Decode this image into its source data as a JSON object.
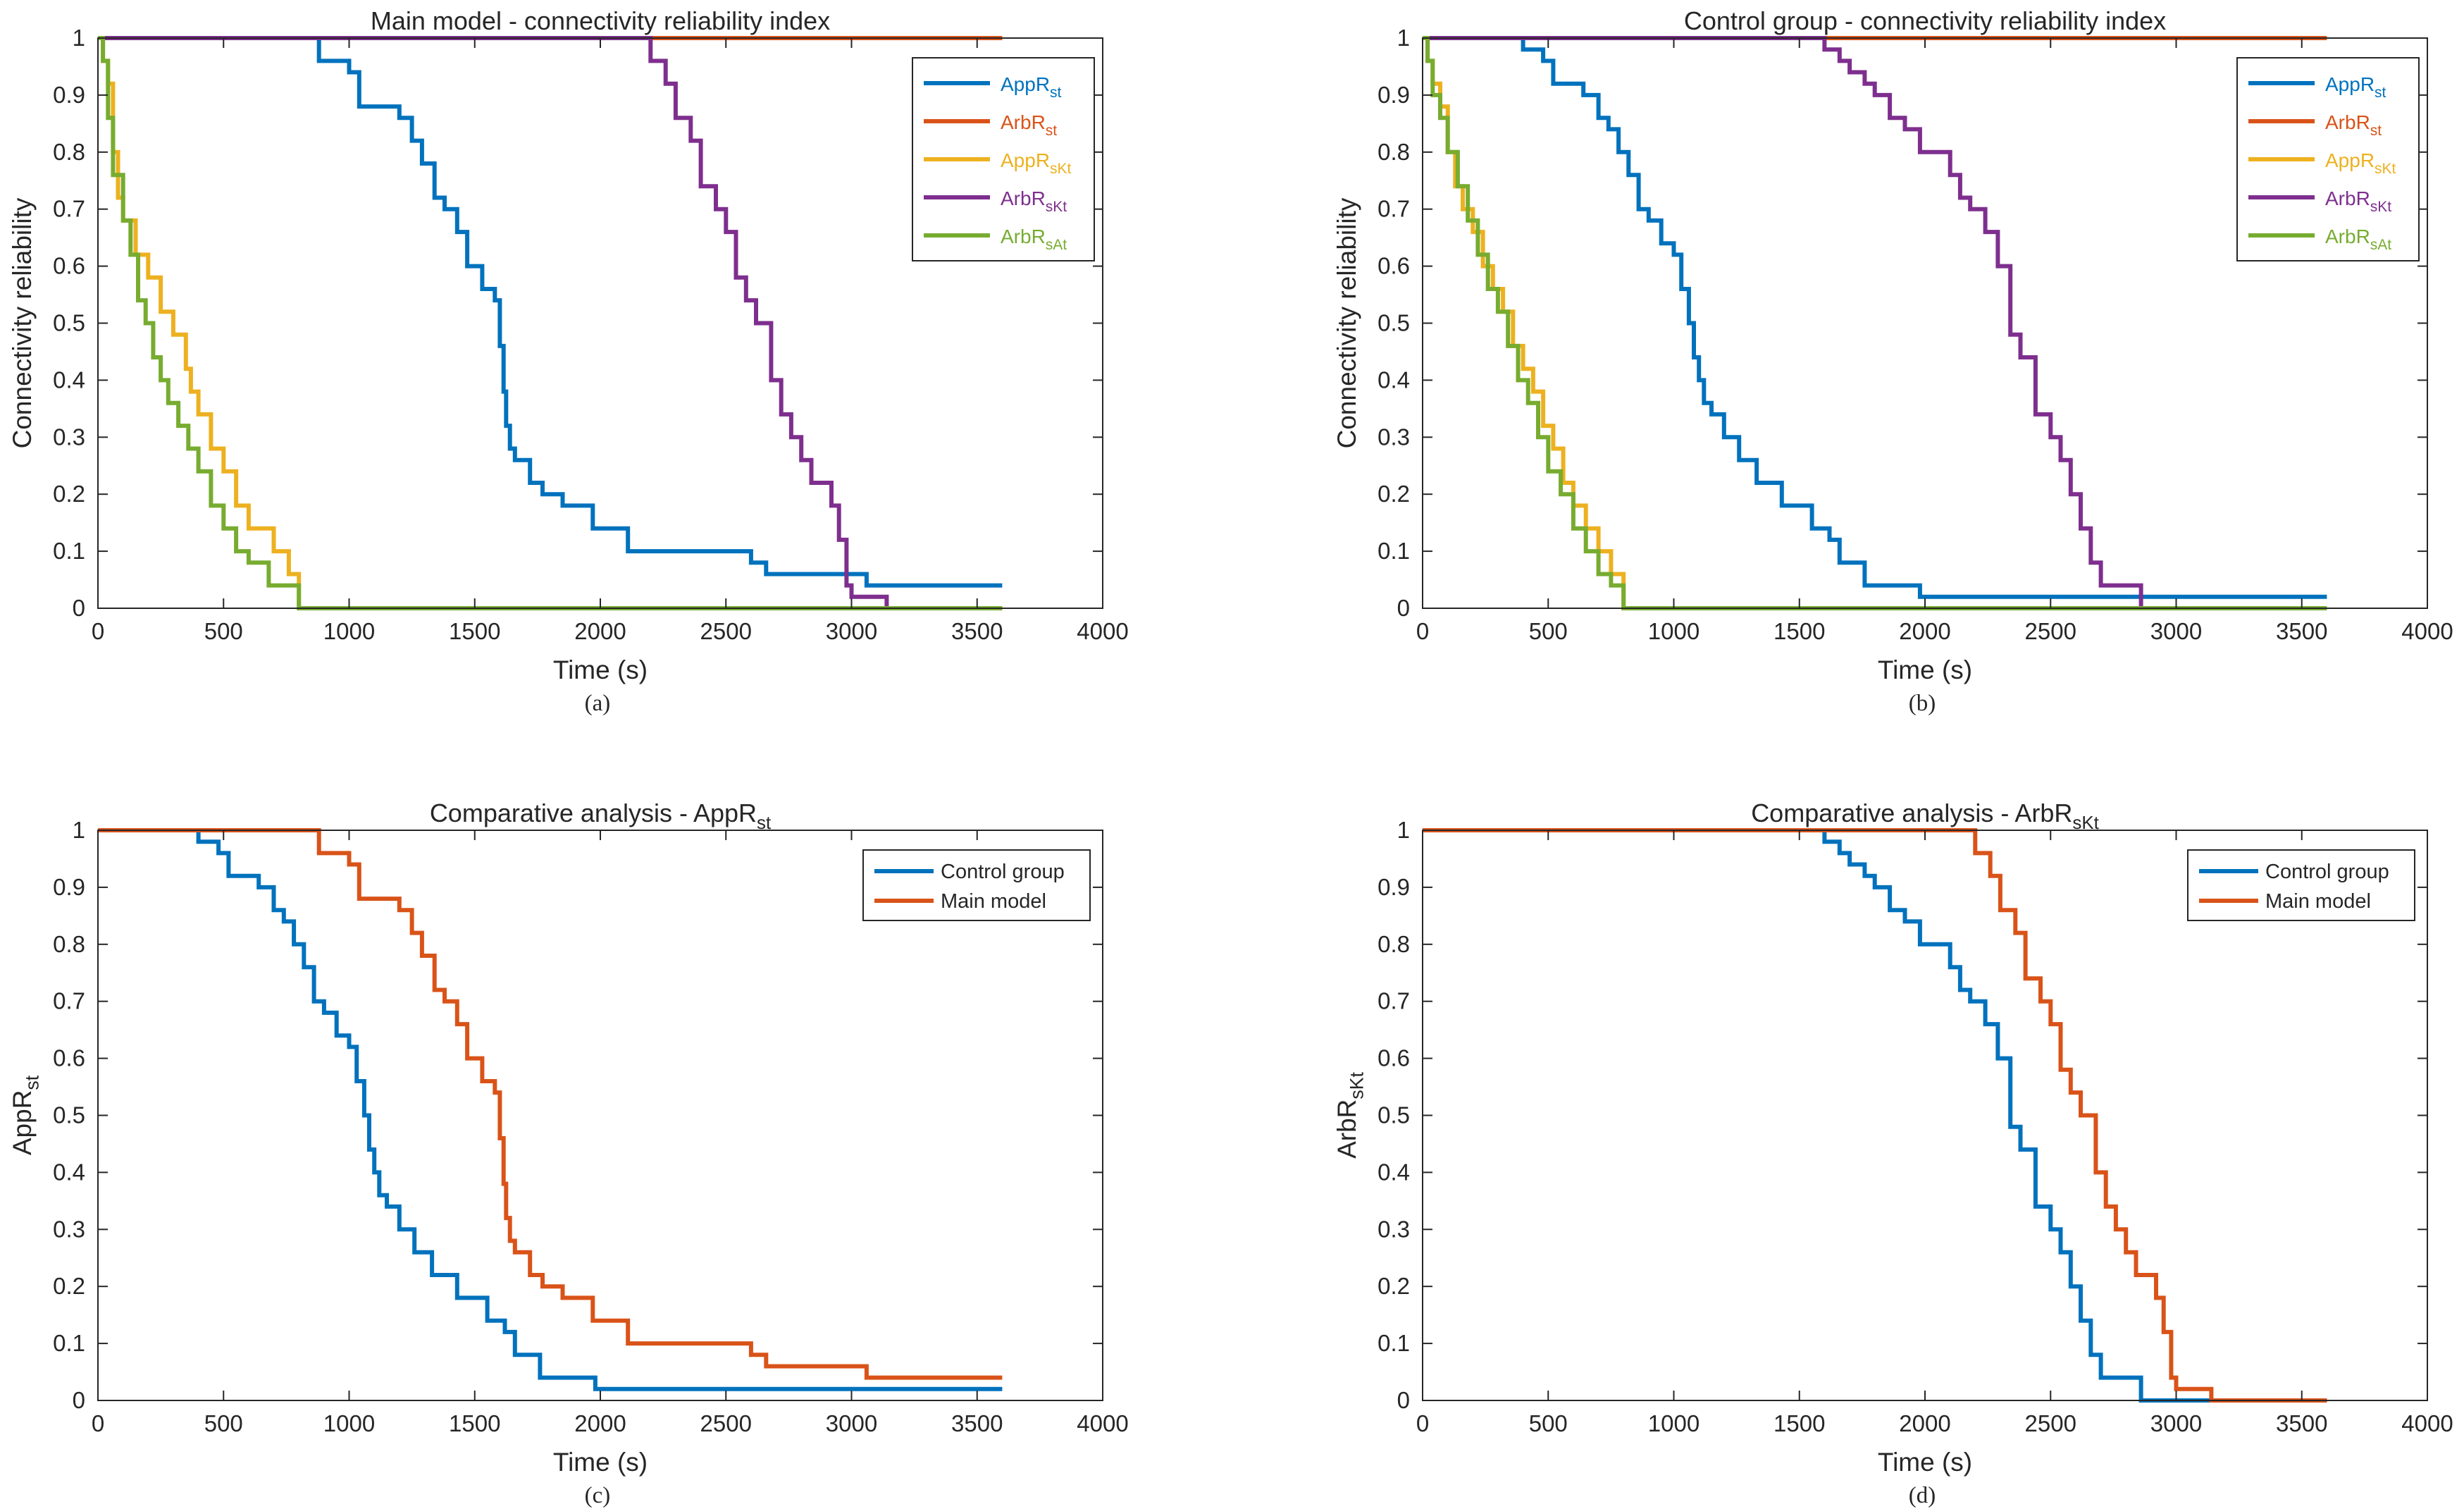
{
  "colors": {
    "blue": "#0072BD",
    "orange": "#D95319",
    "yellow": "#EDB120",
    "purple": "#7E2F8E",
    "green": "#77AC30",
    "axis": "#262626"
  },
  "chart_data": [
    {
      "id": "a",
      "type": "line",
      "title": "Main model - connectivity reliability index",
      "xlabel": "Time (s)",
      "ylabel": "Connectivity reliability",
      "caption": "(a)",
      "xlim": [
        0,
        4000
      ],
      "ylim": [
        0,
        1
      ],
      "xticks": [
        0,
        500,
        1000,
        1500,
        2000,
        2500,
        3000,
        3500,
        4000
      ],
      "yticks": [
        0,
        0.1,
        0.2,
        0.3,
        0.4,
        0.5,
        0.6,
        0.7,
        0.8,
        0.9,
        1
      ],
      "series": [
        {
          "name": "AppR_st",
          "base": "AppR",
          "sub": "st",
          "color": "#0072BD",
          "x": [
            0,
            820,
            880,
            1000,
            1040,
            1200,
            1250,
            1290,
            1340,
            1380,
            1430,
            1470,
            1530,
            1580,
            1600,
            1615,
            1625,
            1640,
            1660,
            1720,
            1770,
            1850,
            1970,
            2110,
            2600,
            2660,
            3060,
            3600
          ],
          "y": [
            1,
            1,
            0.96,
            0.94,
            0.88,
            0.86,
            0.82,
            0.78,
            0.72,
            0.7,
            0.66,
            0.6,
            0.56,
            0.54,
            0.46,
            0.38,
            0.32,
            0.28,
            0.26,
            0.22,
            0.2,
            0.18,
            0.14,
            0.1,
            0.08,
            0.06,
            0.04,
            0.04
          ]
        },
        {
          "name": "ArbR_st",
          "base": "ArbR",
          "sub": "st",
          "color": "#D95319",
          "x": [
            0,
            3600
          ],
          "y": [
            1,
            1
          ]
        },
        {
          "name": "AppR_sKt",
          "base": "AppR",
          "sub": "sKt",
          "color": "#EDB120",
          "x": [
            0,
            20,
            40,
            60,
            80,
            100,
            150,
            200,
            250,
            300,
            350,
            370,
            400,
            450,
            500,
            550,
            600,
            700,
            760,
            800,
            3600
          ],
          "y": [
            1,
            0.96,
            0.92,
            0.8,
            0.72,
            0.68,
            0.62,
            0.58,
            0.52,
            0.48,
            0.42,
            0.38,
            0.34,
            0.28,
            0.24,
            0.18,
            0.14,
            0.1,
            0.06,
            0,
            0
          ]
        },
        {
          "name": "ArbR_sKt",
          "base": "ArbR",
          "sub": "sKt",
          "color": "#7E2F8E",
          "x": [
            0,
            2160,
            2200,
            2260,
            2300,
            2360,
            2400,
            2460,
            2500,
            2540,
            2580,
            2620,
            2680,
            2720,
            2760,
            2800,
            2840,
            2920,
            2950,
            2980,
            3000,
            3140
          ],
          "y": [
            1,
            1,
            0.96,
            0.92,
            0.86,
            0.82,
            0.74,
            0.7,
            0.66,
            0.58,
            0.54,
            0.5,
            0.4,
            0.34,
            0.3,
            0.26,
            0.22,
            0.18,
            0.12,
            0.04,
            0.02,
            0
          ]
        },
        {
          "name": "ArbR_sAt",
          "base": "ArbR",
          "sub": "sAt",
          "color": "#77AC30",
          "x": [
            0,
            20,
            40,
            60,
            100,
            130,
            160,
            190,
            220,
            250,
            280,
            320,
            360,
            400,
            450,
            500,
            550,
            600,
            680,
            800,
            3600
          ],
          "y": [
            1,
            0.96,
            0.86,
            0.76,
            0.68,
            0.62,
            0.54,
            0.5,
            0.44,
            0.4,
            0.36,
            0.32,
            0.28,
            0.24,
            0.18,
            0.14,
            0.1,
            0.08,
            0.04,
            0,
            0
          ]
        }
      ]
    },
    {
      "id": "b",
      "type": "line",
      "title": "Control group - connectivity reliability index",
      "xlabel": "Time (s)",
      "ylabel": "Connectivity reliability",
      "caption": "(b)",
      "xlim": [
        0,
        4000
      ],
      "ylim": [
        0,
        1
      ],
      "xticks": [
        0,
        500,
        1000,
        1500,
        2000,
        2500,
        3000,
        3500,
        4000
      ],
      "yticks": [
        0,
        0.1,
        0.2,
        0.3,
        0.4,
        0.5,
        0.6,
        0.7,
        0.8,
        0.9,
        1
      ],
      "series": [
        {
          "name": "AppR_st",
          "base": "AppR",
          "sub": "st",
          "color": "#0072BD",
          "x": [
            0,
            350,
            400,
            480,
            520,
            640,
            700,
            740,
            780,
            820,
            860,
            900,
            950,
            1000,
            1030,
            1060,
            1080,
            1100,
            1120,
            1150,
            1200,
            1260,
            1330,
            1430,
            1550,
            1620,
            1660,
            1760,
            1980,
            3600
          ],
          "y": [
            1,
            1,
            0.98,
            0.96,
            0.92,
            0.9,
            0.86,
            0.84,
            0.8,
            0.76,
            0.7,
            0.68,
            0.64,
            0.62,
            0.56,
            0.5,
            0.44,
            0.4,
            0.36,
            0.34,
            0.3,
            0.26,
            0.22,
            0.18,
            0.14,
            0.12,
            0.08,
            0.04,
            0.02,
            0.02
          ]
        },
        {
          "name": "ArbR_st",
          "base": "ArbR",
          "sub": "st",
          "color": "#D95319",
          "x": [
            0,
            3600
          ],
          "y": [
            1,
            1
          ]
        },
        {
          "name": "AppR_sKt",
          "base": "AppR",
          "sub": "sKt",
          "color": "#EDB120",
          "x": [
            0,
            20,
            40,
            70,
            100,
            130,
            160,
            200,
            240,
            280,
            320,
            360,
            400,
            440,
            480,
            520,
            560,
            600,
            650,
            700,
            750,
            800,
            3600
          ],
          "y": [
            1,
            0.96,
            0.92,
            0.88,
            0.8,
            0.74,
            0.7,
            0.66,
            0.6,
            0.56,
            0.52,
            0.46,
            0.42,
            0.38,
            0.32,
            0.28,
            0.22,
            0.18,
            0.14,
            0.1,
            0.06,
            0,
            0
          ]
        },
        {
          "name": "ArbR_sKt",
          "base": "ArbR",
          "sub": "sKt",
          "color": "#7E2F8E",
          "x": [
            0,
            1540,
            1600,
            1660,
            1700,
            1760,
            1800,
            1860,
            1920,
            1980,
            2100,
            2140,
            2180,
            2240,
            2290,
            2340,
            2380,
            2440,
            2500,
            2540,
            2580,
            2620,
            2660,
            2700,
            2860
          ],
          "y": [
            1,
            1,
            0.98,
            0.96,
            0.94,
            0.92,
            0.9,
            0.86,
            0.84,
            0.8,
            0.76,
            0.72,
            0.7,
            0.66,
            0.6,
            0.48,
            0.44,
            0.34,
            0.3,
            0.26,
            0.2,
            0.14,
            0.08,
            0.04,
            0
          ]
        },
        {
          "name": "ArbR_sAt",
          "base": "ArbR",
          "sub": "sAt",
          "color": "#77AC30",
          "x": [
            0,
            20,
            40,
            70,
            100,
            140,
            180,
            220,
            260,
            300,
            340,
            380,
            420,
            460,
            500,
            550,
            600,
            650,
            700,
            750,
            800,
            3600
          ],
          "y": [
            1,
            0.96,
            0.9,
            0.86,
            0.8,
            0.74,
            0.68,
            0.62,
            0.56,
            0.52,
            0.46,
            0.4,
            0.36,
            0.3,
            0.24,
            0.2,
            0.14,
            0.1,
            0.06,
            0.04,
            0,
            0
          ]
        }
      ]
    },
    {
      "id": "c",
      "type": "line",
      "title_base": "Comparative analysis - AppR",
      "title_sub": "st",
      "xlabel": "Time (s)",
      "ylabel_base": "AppR",
      "ylabel_sub": "st",
      "caption": "(c)",
      "xlim": [
        0,
        4000
      ],
      "ylim": [
        0,
        1
      ],
      "xticks": [
        0,
        500,
        1000,
        1500,
        2000,
        2500,
        3000,
        3500,
        4000
      ],
      "yticks": [
        0,
        0.1,
        0.2,
        0.3,
        0.4,
        0.5,
        0.6,
        0.7,
        0.8,
        0.9,
        1
      ],
      "series": [
        {
          "name": "Control group",
          "color": "#0072BD",
          "x": [
            0,
            350,
            400,
            480,
            520,
            640,
            700,
            740,
            780,
            820,
            860,
            900,
            950,
            1000,
            1030,
            1060,
            1080,
            1100,
            1120,
            1150,
            1200,
            1260,
            1330,
            1430,
            1550,
            1620,
            1660,
            1760,
            1980,
            3600
          ],
          "y": [
            1,
            1,
            0.98,
            0.96,
            0.92,
            0.9,
            0.86,
            0.84,
            0.8,
            0.76,
            0.7,
            0.68,
            0.64,
            0.62,
            0.56,
            0.5,
            0.44,
            0.4,
            0.36,
            0.34,
            0.3,
            0.26,
            0.22,
            0.18,
            0.14,
            0.12,
            0.08,
            0.04,
            0.02,
            0.02
          ]
        },
        {
          "name": "Main model",
          "color": "#D95319",
          "x": [
            0,
            820,
            880,
            1000,
            1040,
            1200,
            1250,
            1290,
            1340,
            1380,
            1430,
            1470,
            1530,
            1580,
            1600,
            1615,
            1625,
            1640,
            1660,
            1720,
            1770,
            1850,
            1970,
            2110,
            2600,
            2660,
            3060,
            3600
          ],
          "y": [
            1,
            1,
            0.96,
            0.94,
            0.88,
            0.86,
            0.82,
            0.78,
            0.72,
            0.7,
            0.66,
            0.6,
            0.56,
            0.54,
            0.46,
            0.38,
            0.32,
            0.28,
            0.26,
            0.22,
            0.2,
            0.18,
            0.14,
            0.1,
            0.08,
            0.06,
            0.04,
            0.04
          ]
        }
      ]
    },
    {
      "id": "d",
      "type": "line",
      "title_base": "Comparative analysis - ArbR",
      "title_sub": "sKt",
      "xlabel": "Time (s)",
      "ylabel_base": "ArbR",
      "ylabel_sub": "sKt",
      "caption": "(d)",
      "xlim": [
        0,
        4000
      ],
      "ylim": [
        0,
        1
      ],
      "xticks": [
        0,
        500,
        1000,
        1500,
        2000,
        2500,
        3000,
        3500,
        4000
      ],
      "yticks": [
        0,
        0.1,
        0.2,
        0.3,
        0.4,
        0.5,
        0.6,
        0.7,
        0.8,
        0.9,
        1
      ],
      "series": [
        {
          "name": "Control group",
          "color": "#0072BD",
          "x": [
            0,
            1540,
            1600,
            1660,
            1700,
            1760,
            1800,
            1860,
            1920,
            1980,
            2100,
            2140,
            2180,
            2240,
            2290,
            2340,
            2380,
            2440,
            2500,
            2540,
            2580,
            2620,
            2660,
            2700,
            2860,
            3600
          ],
          "y": [
            1,
            1,
            0.98,
            0.96,
            0.94,
            0.92,
            0.9,
            0.86,
            0.84,
            0.8,
            0.76,
            0.72,
            0.7,
            0.66,
            0.6,
            0.48,
            0.44,
            0.34,
            0.3,
            0.26,
            0.2,
            0.14,
            0.08,
            0.04,
            0,
            0
          ]
        },
        {
          "name": "Main model",
          "color": "#D95319",
          "x": [
            0,
            2160,
            2200,
            2260,
            2300,
            2360,
            2400,
            2460,
            2500,
            2540,
            2580,
            2620,
            2680,
            2720,
            2760,
            2800,
            2840,
            2920,
            2950,
            2980,
            3000,
            3140,
            3600
          ],
          "y": [
            1,
            1,
            0.96,
            0.92,
            0.86,
            0.82,
            0.74,
            0.7,
            0.66,
            0.58,
            0.54,
            0.5,
            0.4,
            0.34,
            0.3,
            0.26,
            0.22,
            0.18,
            0.12,
            0.04,
            0.02,
            0,
            0
          ]
        }
      ]
    }
  ]
}
